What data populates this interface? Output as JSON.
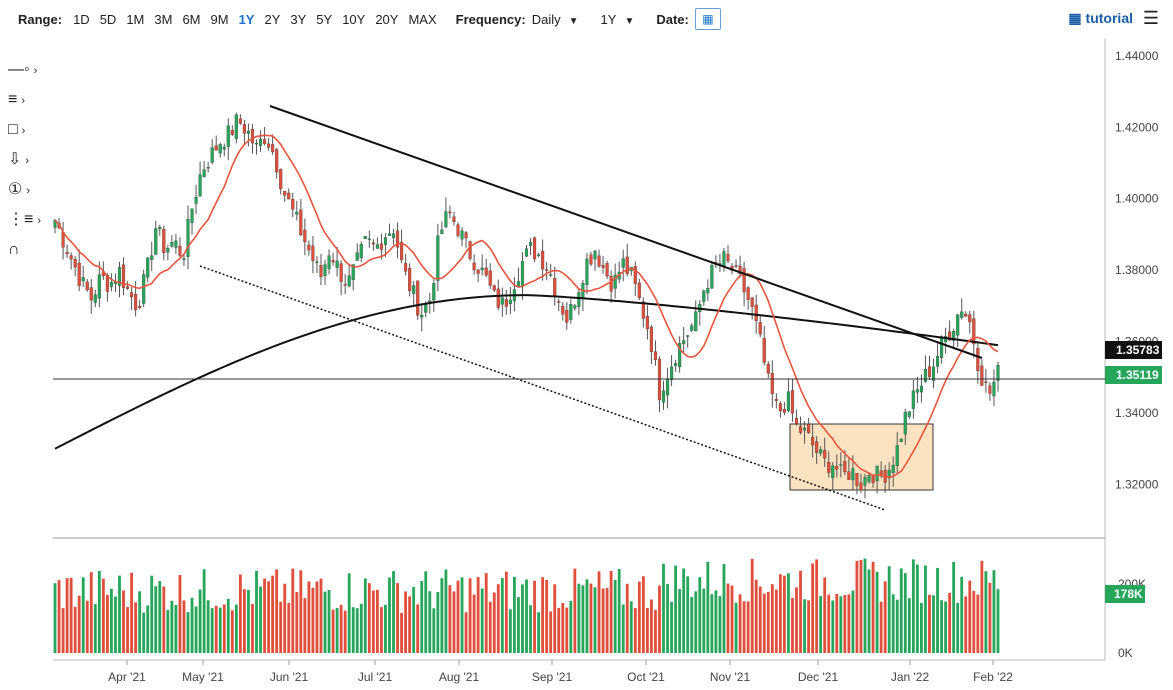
{
  "toolbar": {
    "range_label": "Range:",
    "ranges": [
      "1D",
      "5D",
      "1M",
      "3M",
      "6M",
      "9M",
      "1Y",
      "2Y",
      "3Y",
      "5Y",
      "10Y",
      "20Y",
      "MAX"
    ],
    "active_range": "1Y",
    "frequency_label": "Frequency:",
    "frequency_value": "Daily",
    "period_value": "1Y",
    "date_label": "Date:",
    "tutorial_label": "tutorial"
  },
  "side_tools": [
    "crosshair-tool-icon",
    "fib-levels-icon",
    "rectangle-tool-icon",
    "arrow-down-tool-icon",
    "numbered-marker-icon",
    "indicator-settings-icon",
    "magnet-icon"
  ],
  "colors": {
    "up": "#26a65b",
    "down": "#e04f3c",
    "ma_short": "#e8553e",
    "ma_long": "#111111",
    "box_fill": "#fbe3c1"
  },
  "chart_data": {
    "type": "candlestick",
    "price_axis": {
      "ticks": [
        "1.44000",
        "1.42000",
        "1.40000",
        "1.38000",
        "1.36000",
        "1.34000",
        "1.32000"
      ],
      "ylim": [
        1.305,
        1.445
      ]
    },
    "x_ticks": [
      "Apr '21",
      "May '21",
      "Jun '21",
      "Jul '21",
      "Aug '21",
      "Sep '21",
      "Oct '21",
      "Nov '21",
      "Dec '21",
      "Jan '22",
      "Feb '22"
    ],
    "last_price": "1.35119",
    "ma_long_label": "1.35783",
    "volume_label": "178K",
    "volume_axis": {
      "ticks": [
        "200K",
        "0K"
      ]
    },
    "price_path": [
      1.394,
      1.388,
      1.382,
      1.376,
      1.372,
      1.378,
      1.376,
      1.38,
      1.374,
      1.37,
      1.379,
      1.392,
      1.386,
      1.388,
      1.384,
      1.398,
      1.408,
      1.412,
      1.416,
      1.418,
      1.422,
      1.419,
      1.414,
      1.418,
      1.412,
      1.402,
      1.396,
      1.39,
      1.384,
      1.378,
      1.386,
      1.38,
      1.376,
      1.382,
      1.388,
      1.386,
      1.39,
      1.392,
      1.38,
      1.374,
      1.368,
      1.372,
      1.39,
      1.396,
      1.392,
      1.386,
      1.382,
      1.378,
      1.372,
      1.37,
      1.376,
      1.382,
      1.386,
      1.384,
      1.38,
      1.372,
      1.366,
      1.374,
      1.382,
      1.386,
      1.38,
      1.376,
      1.382,
      1.378,
      1.37,
      1.362,
      1.346,
      1.352,
      1.358,
      1.362,
      1.366,
      1.376,
      1.38,
      1.383,
      1.38,
      1.376,
      1.37,
      1.36,
      1.347,
      1.34,
      1.344,
      1.336,
      1.334,
      1.33,
      1.326,
      1.326,
      1.322,
      1.324,
      1.32,
      1.324,
      1.322,
      1.324,
      1.33,
      1.34,
      1.345,
      1.35,
      1.354,
      1.36,
      1.364,
      1.37,
      1.365,
      1.352,
      1.345,
      1.351
    ]
  }
}
